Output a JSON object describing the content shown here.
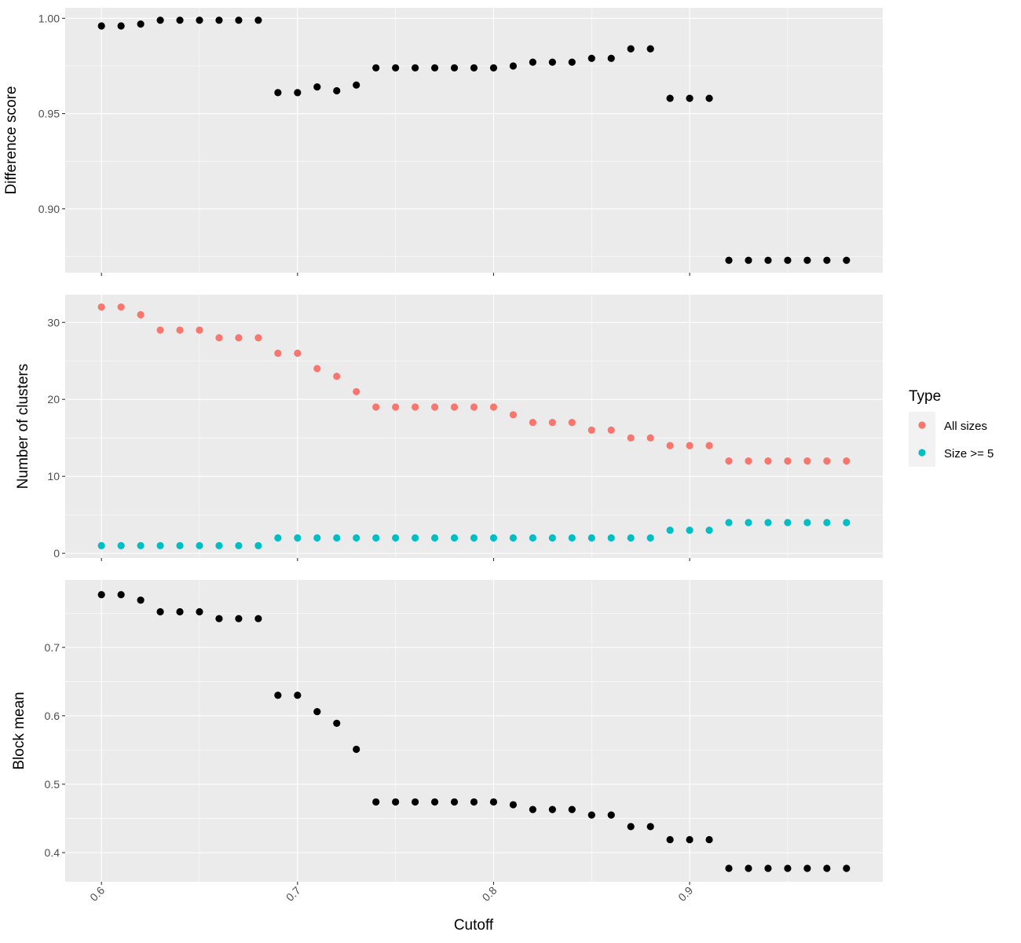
{
  "chart_data": {
    "type": "scatter",
    "xlabel": "Cutoff",
    "x": [
      0.6,
      0.61,
      0.62,
      0.63,
      0.64,
      0.65,
      0.66,
      0.67,
      0.68,
      0.69,
      0.7,
      0.71,
      0.72,
      0.73,
      0.74,
      0.75,
      0.76,
      0.77,
      0.78,
      0.79,
      0.8,
      0.81,
      0.82,
      0.83,
      0.84,
      0.85,
      0.86,
      0.87,
      0.88,
      0.89,
      0.9,
      0.91,
      0.92,
      0.93,
      0.94,
      0.95,
      0.96,
      0.97,
      0.98
    ],
    "x_ticks": [
      0.6,
      0.7,
      0.8,
      0.9
    ],
    "x_tick_labels": [
      "0.6",
      "0.7",
      "0.8",
      "0.9"
    ],
    "xlim": [
      0.5815,
      0.9985
    ],
    "panels": [
      {
        "ylabel": "Difference score",
        "ylim": [
          0.8665,
          1.0055
        ],
        "y_ticks": [
          0.9,
          0.95,
          1.0
        ],
        "y_tick_labels": [
          "0.90",
          "0.95",
          "1.00"
        ],
        "series": [
          {
            "color": "#000000",
            "values": [
              0.996,
              0.996,
              0.997,
              0.999,
              0.999,
              0.999,
              0.999,
              0.999,
              0.999,
              0.961,
              0.961,
              0.964,
              0.962,
              0.965,
              0.974,
              0.974,
              0.974,
              0.974,
              0.974,
              0.974,
              0.974,
              0.975,
              0.977,
              0.977,
              0.977,
              0.979,
              0.979,
              0.984,
              0.984,
              0.958,
              0.958,
              0.958,
              0.873,
              0.873,
              0.873,
              0.873,
              0.873,
              0.873,
              0.873
            ]
          }
        ]
      },
      {
        "ylabel": "Number of clusters",
        "ylim": [
          -0.6,
          33.6
        ],
        "y_ticks": [
          0,
          10,
          20,
          30
        ],
        "y_tick_labels": [
          "0",
          "10",
          "20",
          "30"
        ],
        "series": [
          {
            "name": "All sizes",
            "color": "#F8766D",
            "values": [
              32,
              32,
              31,
              29,
              29,
              29,
              28,
              28,
              28,
              26,
              26,
              24,
              23,
              21,
              19,
              19,
              19,
              19,
              19,
              19,
              19,
              18,
              17,
              17,
              17,
              16,
              16,
              15,
              15,
              14,
              14,
              14,
              12,
              12,
              12,
              12,
              12,
              12,
              12
            ]
          },
          {
            "name": "Size >= 5",
            "color": "#00BFC4",
            "values": [
              1,
              1,
              1,
              1,
              1,
              1,
              1,
              1,
              1,
              2,
              2,
              2,
              2,
              2,
              2,
              2,
              2,
              2,
              2,
              2,
              2,
              2,
              2,
              2,
              2,
              2,
              2,
              2,
              2,
              3,
              3,
              3,
              4,
              4,
              4,
              4,
              4,
              4,
              4
            ]
          }
        ]
      },
      {
        "ylabel": "Block mean",
        "ylim": [
          0.3575,
          0.7985
        ],
        "y_ticks": [
          0.4,
          0.5,
          0.6,
          0.7
        ],
        "y_tick_labels": [
          "0.4",
          "0.5",
          "0.6",
          "0.7"
        ],
        "series": [
          {
            "color": "#000000",
            "values": [
              0.777,
              0.777,
              0.769,
              0.752,
              0.752,
              0.752,
              0.742,
              0.742,
              0.742,
              0.63,
              0.63,
              0.606,
              0.589,
              0.551,
              0.474,
              0.474,
              0.474,
              0.474,
              0.474,
              0.474,
              0.474,
              0.47,
              0.463,
              0.463,
              0.463,
              0.455,
              0.455,
              0.438,
              0.438,
              0.419,
              0.419,
              0.419,
              0.377,
              0.377,
              0.377,
              0.377,
              0.377,
              0.377,
              0.377
            ]
          }
        ]
      }
    ],
    "legend": {
      "title": "Type",
      "position": "right",
      "entries": [
        {
          "label": "All sizes",
          "color": "#F8766D"
        },
        {
          "label": "Size >= 5",
          "color": "#00BFC4"
        }
      ]
    },
    "grid": true,
    "panel_background": "#EBEBEB"
  }
}
